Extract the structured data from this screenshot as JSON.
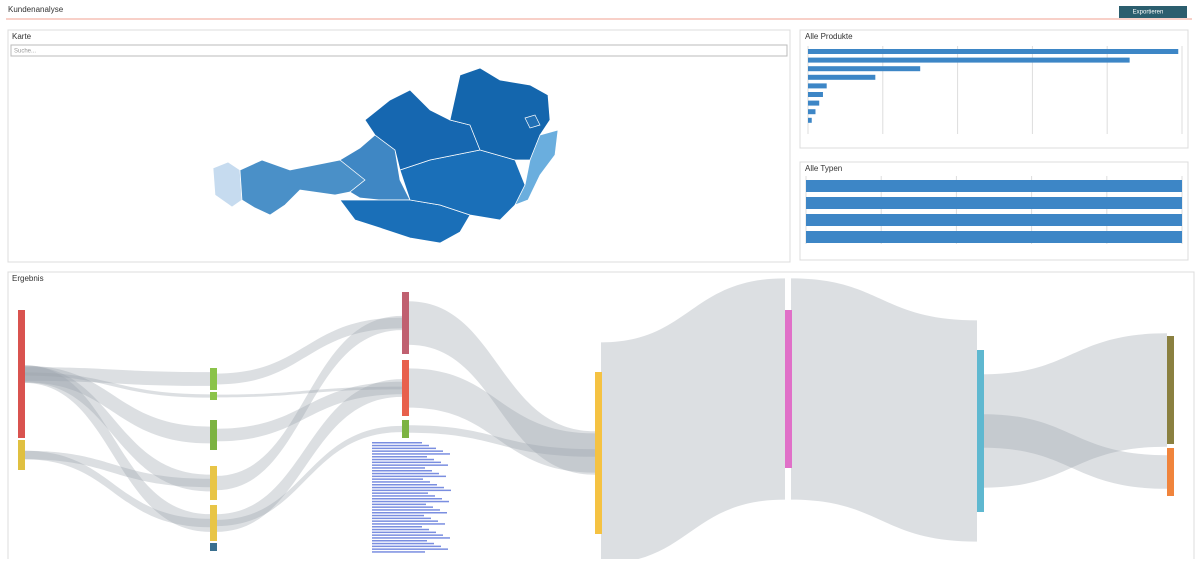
{
  "header": {
    "title": "Kundenanalyse",
    "button": "Exportieren"
  },
  "map_panel": {
    "title": "Karte",
    "search_placeholder": "Suche..."
  },
  "products_panel": {
    "title": "Alle Produkte",
    "values": [
      99,
      86,
      30,
      18,
      5,
      4,
      3,
      2,
      1
    ],
    "xlim": [
      0,
      100
    ],
    "color": "#3d86c6"
  },
  "types_panel": {
    "title": "Alle Typen",
    "values": [
      100,
      100,
      100,
      100
    ],
    "xlim": [
      0,
      100
    ],
    "color": "#3d86c6"
  },
  "sankey_panel": {
    "title": "Ergebnis"
  }
}
